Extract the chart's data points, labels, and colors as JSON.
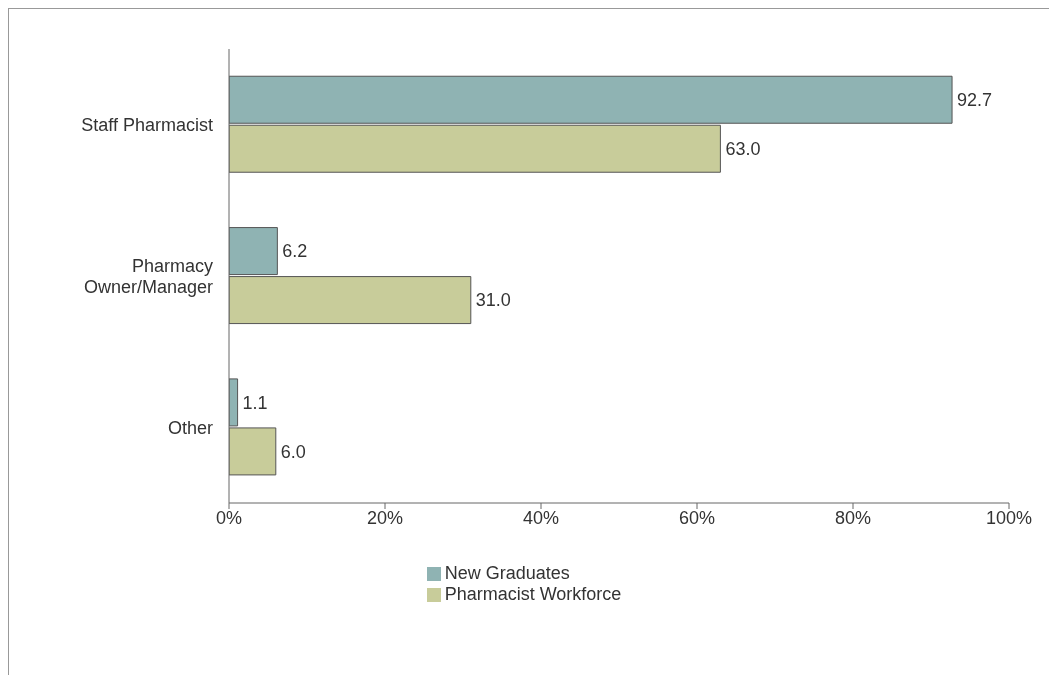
{
  "chart_data": {
    "type": "bar",
    "orientation": "horizontal",
    "categories": [
      "Staff Pharmacist",
      "Pharmacy\nOwner/Manager",
      "Other"
    ],
    "series": [
      {
        "name": "New Graduates",
        "color": "#8fb3b3",
        "values": [
          92.7,
          6.2,
          1.1
        ],
        "value_labels": [
          "92.7",
          "6.2",
          "1.1"
        ]
      },
      {
        "name": "Pharmacist Workforce",
        "color": "#c8cc9a",
        "values": [
          63.0,
          31.0,
          6.0
        ],
        "value_labels": [
          "63.0",
          "31.0",
          "6.0"
        ]
      }
    ],
    "xlim": [
      0,
      100
    ],
    "xticks": [
      {
        "value": 0,
        "label": "0%"
      },
      {
        "value": 20,
        "label": "20%"
      },
      {
        "value": 40,
        "label": "40%"
      },
      {
        "value": 60,
        "label": "60%"
      },
      {
        "value": 80,
        "label": "80%"
      },
      {
        "value": 100,
        "label": "100%"
      }
    ],
    "grid": false,
    "legend": "bottom"
  }
}
